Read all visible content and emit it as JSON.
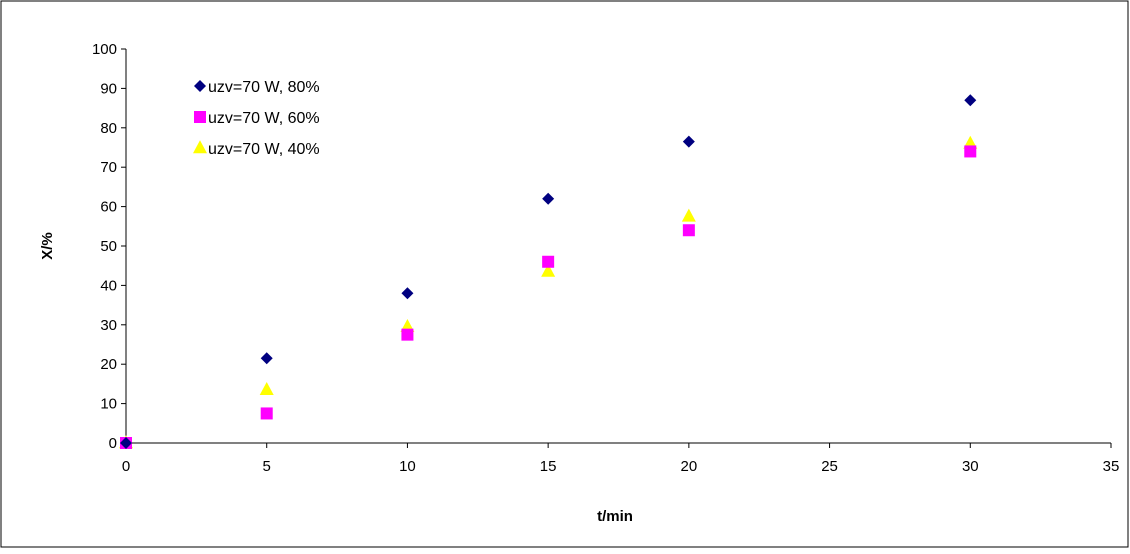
{
  "chart_data": {
    "type": "scatter",
    "title": "",
    "xlabel": "t/min",
    "ylabel": "X/%",
    "xlim": [
      0,
      35
    ],
    "ylim": [
      0,
      100
    ],
    "xticks": [
      0,
      5,
      10,
      15,
      20,
      25,
      30,
      35
    ],
    "yticks": [
      0,
      10,
      20,
      30,
      40,
      50,
      60,
      70,
      80,
      90,
      100
    ],
    "grid": false,
    "legend_position": "top-left",
    "series": [
      {
        "name": "uzv=70 W, 80%",
        "marker": "diamond",
        "color": "#000080",
        "x": [
          0,
          5,
          10,
          15,
          20,
          30
        ],
        "y": [
          0,
          21.5,
          38,
          62,
          76.5,
          87
        ]
      },
      {
        "name": "uzv=70 W, 60%",
        "marker": "square",
        "color": "#FF00FF",
        "x": [
          0,
          5,
          10,
          15,
          20,
          30
        ],
        "y": [
          0,
          7.5,
          27.5,
          46,
          54,
          74
        ]
      },
      {
        "name": "uzv=70 W, 40%",
        "marker": "triangle",
        "color": "#FFFF00",
        "x": [
          0,
          5,
          10,
          15,
          20,
          30
        ],
        "y": [
          0,
          13.5,
          29.5,
          43.5,
          57.5,
          76
        ]
      }
    ]
  }
}
